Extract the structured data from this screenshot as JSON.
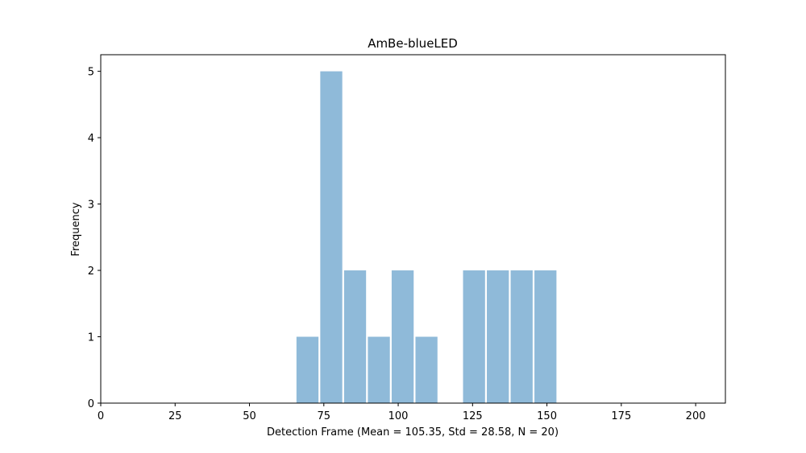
{
  "chart_data": {
    "type": "bar",
    "title": "AmBe-blueLED",
    "xlabel": "Detection Frame (Mean = 105.35, Std = 28.58, N = 20)",
    "ylabel": "Frequency",
    "xlim": [
      0,
      210
    ],
    "ylim": [
      0,
      5.25
    ],
    "xticks": [
      "0",
      "25",
      "50",
      "75",
      "100",
      "125",
      "150",
      "175",
      "200"
    ],
    "yticks": [
      "0",
      "1",
      "2",
      "3",
      "4",
      "5"
    ],
    "bar_color": "#8fbad9",
    "bins": [
      {
        "x0": 65.8,
        "x1": 73.2,
        "value": 1
      },
      {
        "x0": 73.8,
        "x1": 81.2,
        "value": 5
      },
      {
        "x0": 81.8,
        "x1": 89.2,
        "value": 2
      },
      {
        "x0": 89.8,
        "x1": 97.2,
        "value": 1
      },
      {
        "x0": 97.8,
        "x1": 105.2,
        "value": 2
      },
      {
        "x0": 105.8,
        "x1": 113.2,
        "value": 1
      },
      {
        "x0": 121.8,
        "x1": 129.2,
        "value": 2
      },
      {
        "x0": 129.8,
        "x1": 137.2,
        "value": 2
      },
      {
        "x0": 137.8,
        "x1": 145.2,
        "value": 2
      },
      {
        "x0": 145.8,
        "x1": 153.2,
        "value": 2
      }
    ],
    "grid": false,
    "legend": false
  }
}
